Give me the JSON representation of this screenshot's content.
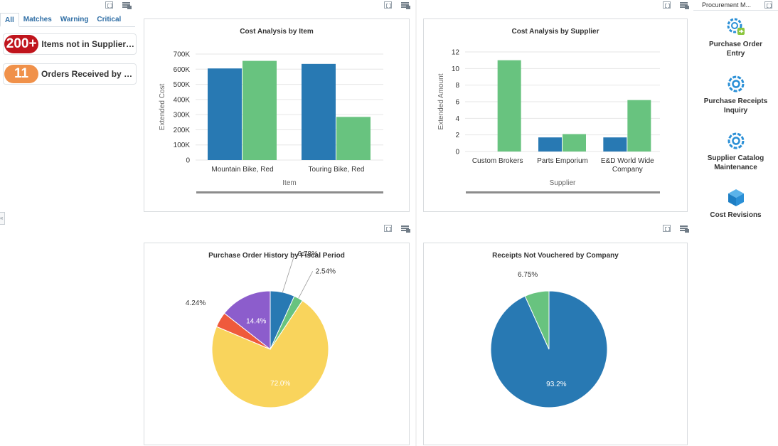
{
  "tabs": [
    "All",
    "Matches",
    "Warning",
    "Critical"
  ],
  "alerts": [
    {
      "count": "200+",
      "label": "Items not in Supplier C...",
      "color": "#c0141c"
    },
    {
      "count": "11",
      "label": "Orders Received by Su...",
      "color": "#f0914a"
    }
  ],
  "right_panel": {
    "title": "Procurement M...",
    "apps": [
      {
        "label": "Purchase Order Entry",
        "icon": "gear-arrow-icon"
      },
      {
        "label": "Purchase Receipts Inquiry",
        "icon": "gear-icon"
      },
      {
        "label": "Supplier Catalog Maintenance",
        "icon": "gear-icon"
      },
      {
        "label": "Cost Revisions",
        "icon": "cube-icon"
      }
    ]
  },
  "colors": {
    "blue": "#2879b3",
    "green": "#68c37f",
    "yellow": "#f9d45c",
    "red": "#ef5a3c",
    "purple": "#8c5dcc"
  },
  "chart_data": [
    {
      "type": "bar",
      "title": "Cost Analysis by Item",
      "xlabel": "Item",
      "ylabel": "Extended Cost",
      "categories": [
        "Mountain Bike, Red",
        "Touring Bike, Red"
      ],
      "series": [
        {
          "values": [
            605000,
            635000
          ]
        },
        {
          "values": [
            655000,
            285000
          ]
        }
      ],
      "series_layout": "per_category_pairs",
      "ylim": [
        0,
        700000
      ],
      "yticks": [
        "0",
        "100K",
        "200K",
        "300K",
        "400K",
        "500K",
        "600K",
        "700K"
      ]
    },
    {
      "type": "bar",
      "title": "Cost Analysis by Supplier",
      "xlabel": "Supplier",
      "ylabel": "Extended Amount",
      "categories": [
        "Custom Brokers",
        "Parts Emporium",
        "E&D World Wide Company"
      ],
      "series": [
        {
          "values": [
            0,
            1.7,
            1.7
          ]
        },
        {
          "values": [
            11,
            2.1,
            6.2
          ]
        }
      ],
      "ylim": [
        0,
        12
      ],
      "yticks": [
        "0",
        "2",
        "4",
        "6",
        "8",
        "10",
        "12"
      ]
    },
    {
      "type": "pie",
      "title": "Purchase Order History by Fiscal Period",
      "slices": [
        {
          "value": 6.78,
          "label": "6.78%"
        },
        {
          "value": 2.54,
          "label": "2.54%"
        },
        {
          "value": 72.0,
          "label": "72.0%"
        },
        {
          "value": 4.24,
          "label": "4.24%"
        },
        {
          "value": 14.4,
          "label": "14.4%"
        }
      ]
    },
    {
      "type": "pie",
      "title": "Receipts Not Vouchered by Company",
      "slices": [
        {
          "value": 93.2,
          "label": "93.2%"
        },
        {
          "value": 6.75,
          "label": "6.75%"
        }
      ]
    }
  ]
}
